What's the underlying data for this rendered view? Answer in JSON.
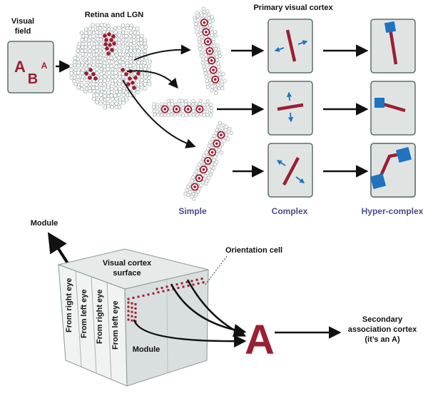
{
  "labels": {
    "visual_field": [
      "Visual",
      "field"
    ],
    "retina_lgn": "Retina and LGN",
    "primary_cortex": "Primary visual cortex",
    "simple": "Simple",
    "complex": "Complex",
    "hyper_complex": "Hyper-complex",
    "module_top": "Module",
    "cortex_surface": [
      "Visual cortex",
      "surface"
    ],
    "orientation_cell": "Orientation cell",
    "stripes": [
      "From right eye",
      "From left eye",
      "From right eye",
      "From left eye"
    ],
    "module_front": "Module",
    "big_letter": "A",
    "secondary": [
      "Secondary",
      "association cortex",
      "(it’s an A)"
    ]
  },
  "visual_field_letters": [
    "A",
    "B",
    "A"
  ],
  "colors": {
    "crimson": "#9b1f33",
    "blue": "#1f73c0",
    "panel_fill": "#dfe4e3",
    "panel_stroke": "#5e6e6b",
    "category_text": "#4a4c86",
    "cell_fill": "#ffffff",
    "cell_stroke": "#8a9896",
    "cube_top": "#e6ebea",
    "cube_front": "#f1f3f3",
    "cube_side": "#d9dfde"
  },
  "icons": [
    "bar-up-right-icon",
    "bar-horizontal-icon",
    "bar-down-left-icon",
    "ell-stimulus-icon",
    "arrow-icon"
  ]
}
